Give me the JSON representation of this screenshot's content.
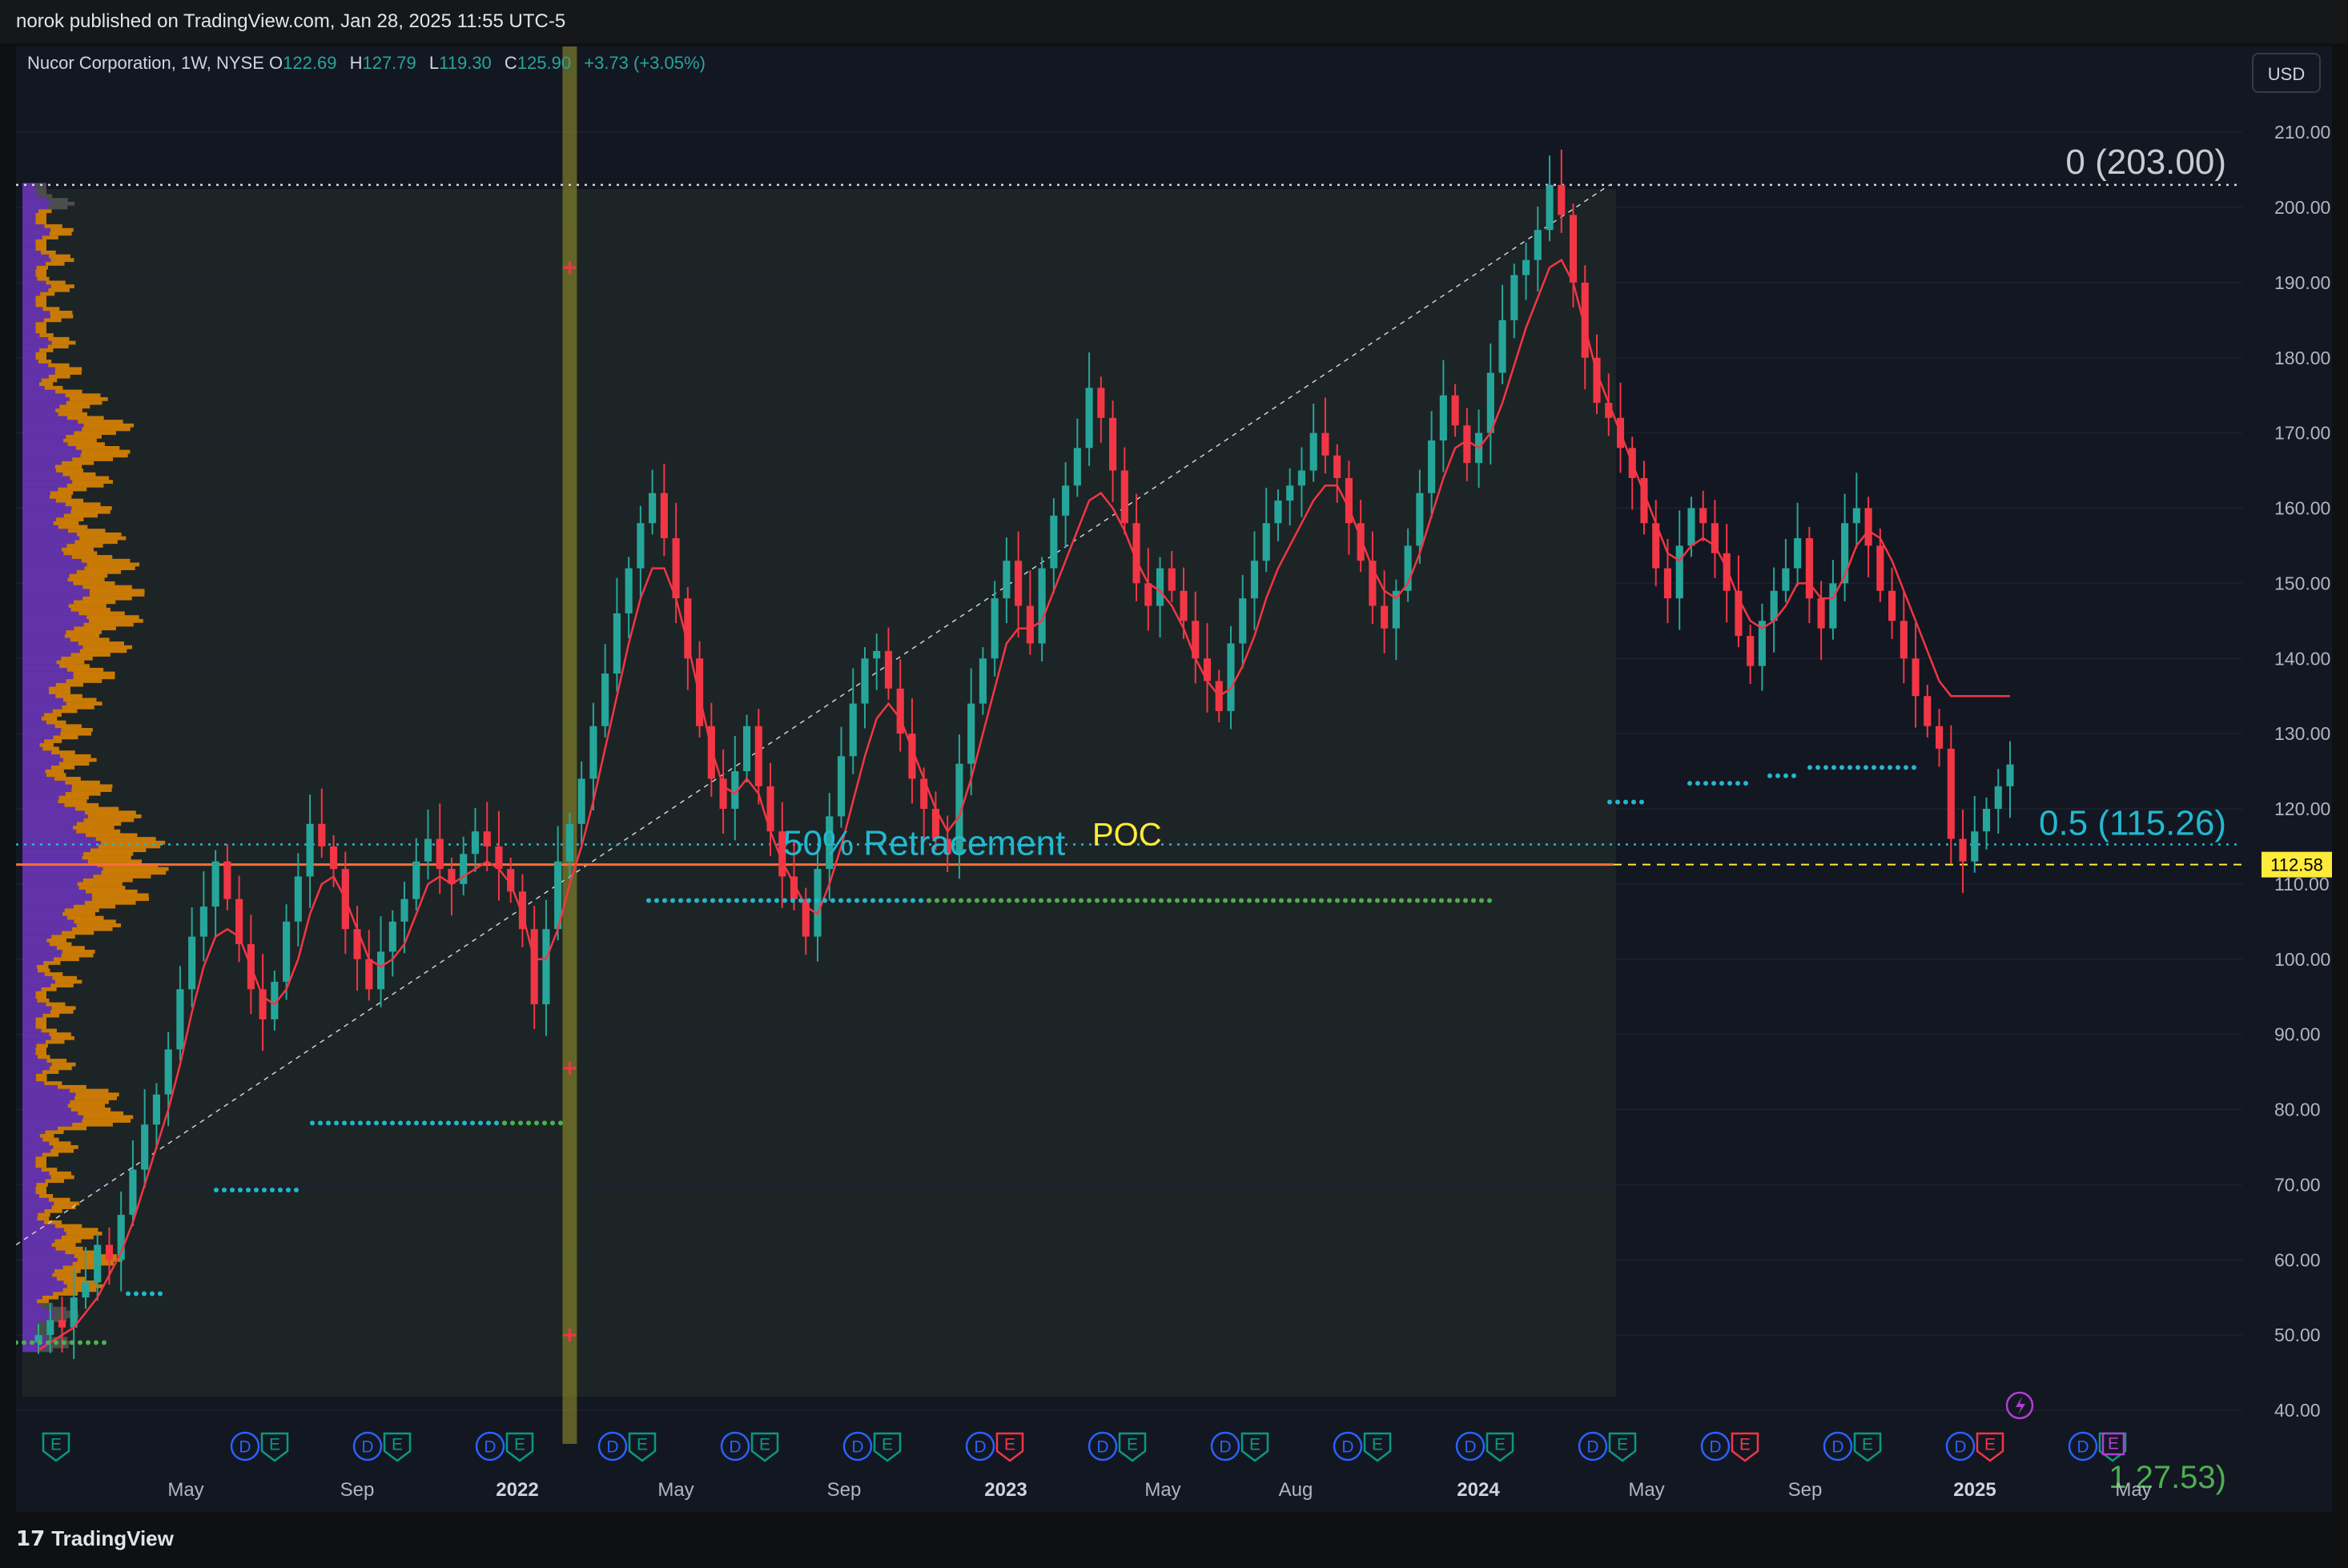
{
  "header": {
    "published": "norok published on TradingView.com, Jan 28, 2025 11:55 UTC-5"
  },
  "legend": {
    "symbol": "Nucor Corporation, 1W, NYSE",
    "o_label": "O",
    "o": "122.69",
    "h_label": "H",
    "h": "127.79",
    "l_label": "L",
    "l": "119.30",
    "c_label": "C",
    "c": "125.90",
    "change": "+3.73 (+3.05%)"
  },
  "currency_button": "USD",
  "footer": {
    "brand": "TradingView",
    "logo_glyph": "17"
  },
  "colors": {
    "background": "#131722",
    "up": "#26a69a",
    "down": "#f23645",
    "trend_line": "#f23645",
    "volume_profile_value_area": "#e68a00",
    "volume_profile_outside": "#6a34b8",
    "fib_line": "#22b8cf",
    "poc_line": "#ff6d3a",
    "poc_label": "#ffeb3b",
    "price_tag": "#ffeb3b",
    "dividend_event": "#2962ff",
    "earnings_event": "#089981",
    "earnings_miss": "#f23645",
    "highlight_column": "#9a9a2a"
  },
  "annotations": {
    "fib_top": "0 (203.00)",
    "fib_half": "0.5 (115.26)",
    "retracement_label": "50% Retracement",
    "poc_label": "POC",
    "last_price_tag": "112.58",
    "cut_label": "1 27.53)"
  },
  "chart_data": {
    "type": "candlestick",
    "title": "Nucor Corporation, 1W, NYSE",
    "ylim": [
      36,
      214
    ],
    "y_ticks": [
      "40.00",
      "50.00",
      "60.00",
      "70.00",
      "80.00",
      "90.00",
      "100.00",
      "110.00",
      "120.00",
      "130.00",
      "140.00",
      "150.00",
      "160.00",
      "170.00",
      "180.00",
      "190.00",
      "200.00",
      "210.00"
    ],
    "x_ticks": [
      "May",
      "Sep",
      "2022",
      "May",
      "Sep",
      "2023",
      "May",
      "Aug",
      "2024",
      "May",
      "Sep",
      "2025",
      "May"
    ],
    "x_ticks_bold": [
      "2022",
      "2023",
      "2024",
      "2025"
    ],
    "price_series_close": [
      50,
      52,
      51,
      55,
      57,
      62,
      60,
      66,
      72,
      78,
      82,
      88,
      96,
      103,
      107,
      113,
      108,
      102,
      96,
      92,
      97,
      105,
      111,
      118,
      115,
      112,
      104,
      100,
      96,
      101,
      105,
      108,
      113,
      116,
      112,
      110,
      114,
      117,
      115,
      112,
      109,
      104,
      94,
      104,
      113,
      118,
      124,
      131,
      138,
      146,
      152,
      158,
      162,
      156,
      148,
      140,
      131,
      124,
      120,
      125,
      131,
      123,
      117,
      111,
      108,
      103,
      112,
      119,
      127,
      134,
      140,
      141,
      136,
      130,
      124,
      120,
      116,
      114,
      126,
      134,
      140,
      148,
      153,
      147,
      142,
      152,
      159,
      163,
      168,
      176,
      172,
      165,
      158,
      150,
      147,
      152,
      149,
      145,
      140,
      137,
      133,
      142,
      148,
      153,
      158,
      161,
      163,
      165,
      170,
      167,
      164,
      158,
      153,
      147,
      144,
      149,
      155,
      162,
      169,
      175,
      171,
      166,
      170,
      178,
      185,
      191,
      193,
      197,
      203,
      199,
      190,
      180,
      174,
      172,
      168,
      164,
      158,
      152,
      148,
      155,
      160,
      158,
      154,
      149,
      143,
      139,
      145,
      149,
      152,
      156,
      148,
      144,
      150,
      158,
      160,
      155,
      149,
      145,
      140,
      135,
      131,
      128,
      116,
      113,
      117,
      120,
      123,
      125.9
    ],
    "series": [
      {
        "name": "Trailing stop",
        "type": "line",
        "values": [
          48,
          49,
          50,
          51,
          53,
          55,
          58,
          61,
          65,
          70,
          75,
          80,
          86,
          93,
          99,
          103,
          104,
          103,
          99,
          95,
          94,
          96,
          100,
          106,
          110,
          111,
          108,
          104,
          100,
          99,
          100,
          102,
          106,
          110,
          111,
          110,
          111,
          112,
          113,
          112,
          110,
          106,
          100,
          100,
          104,
          110,
          115,
          121,
          128,
          135,
          142,
          148,
          152,
          152,
          148,
          142,
          135,
          128,
          123,
          122,
          124,
          122,
          117,
          113,
          110,
          107,
          106,
          110,
          115,
          121,
          127,
          132,
          134,
          132,
          128,
          124,
          120,
          117,
          119,
          124,
          130,
          136,
          142,
          144,
          144,
          145,
          149,
          153,
          157,
          161,
          162,
          160,
          157,
          153,
          150,
          149,
          147,
          144,
          140,
          137,
          135,
          136,
          139,
          143,
          148,
          152,
          155,
          158,
          161,
          163,
          163,
          160,
          156,
          152,
          149,
          148,
          150,
          154,
          159,
          164,
          168,
          169,
          168,
          170,
          174,
          179,
          184,
          188,
          192,
          193,
          190,
          184,
          178,
          174,
          170,
          166,
          162,
          158,
          154,
          153,
          155,
          156,
          155,
          152,
          148,
          145,
          144,
          145,
          147,
          150,
          150,
          148,
          148,
          151,
          155,
          157,
          156,
          153,
          149,
          145,
          141,
          137,
          135,
          135,
          135,
          135,
          135,
          135
        ]
      }
    ],
    "horizontal_levels": [
      {
        "label": "0 (203.00)",
        "value": 203.0
      },
      {
        "label": "0.5 (115.26)",
        "value": 115.26
      },
      {
        "label": "POC",
        "value": 112.58
      }
    ],
    "dot_levels": [
      {
        "value": 107.8,
        "color": "#22b8cf"
      },
      {
        "value": 107.8,
        "color": "#4caf50"
      },
      {
        "value": 78.2,
        "color": "#22b8cf"
      },
      {
        "value": 78.2,
        "color": "#4caf50"
      },
      {
        "value": 69.3,
        "color": "#22b8cf"
      },
      {
        "value": 55.5,
        "color": "#22b8cf"
      },
      {
        "value": 49.0,
        "color": "#4caf50"
      },
      {
        "value": 120.9,
        "color": "#22b8cf"
      },
      {
        "value": 123.4,
        "color": "#22b8cf"
      },
      {
        "value": 124.4,
        "color": "#22b8cf"
      },
      {
        "value": 125.5,
        "color": "#22b8cf"
      }
    ],
    "vertical_marker_levels": [
      192,
      85.5,
      50
    ],
    "events": [
      {
        "d": false,
        "e": "E",
        "miss": false
      },
      {
        "d": true,
        "e": "E",
        "miss": false
      },
      {
        "d": true,
        "e": "E",
        "miss": false
      },
      {
        "d": true,
        "e": "E",
        "miss": false
      },
      {
        "d": true,
        "e": "E",
        "miss": false
      },
      {
        "d": true,
        "e": "E",
        "miss": false
      },
      {
        "d": true,
        "e": "E",
        "miss": false
      },
      {
        "d": true,
        "e": "E",
        "miss": true
      },
      {
        "d": true,
        "e": "E",
        "miss": false
      },
      {
        "d": true,
        "e": "E",
        "miss": false
      },
      {
        "d": true,
        "e": "E",
        "miss": false
      },
      {
        "d": true,
        "e": "E",
        "miss": false
      },
      {
        "d": true,
        "e": "E",
        "miss": false
      },
      {
        "d": true,
        "e": "E",
        "miss": true
      },
      {
        "d": true,
        "e": "E",
        "miss": false
      },
      {
        "d": true,
        "e": "E",
        "miss": true
      },
      {
        "d": true,
        "e": "E",
        "miss": false
      }
    ],
    "event_letters": {
      "dividend": "D",
      "earnings": "E"
    }
  }
}
